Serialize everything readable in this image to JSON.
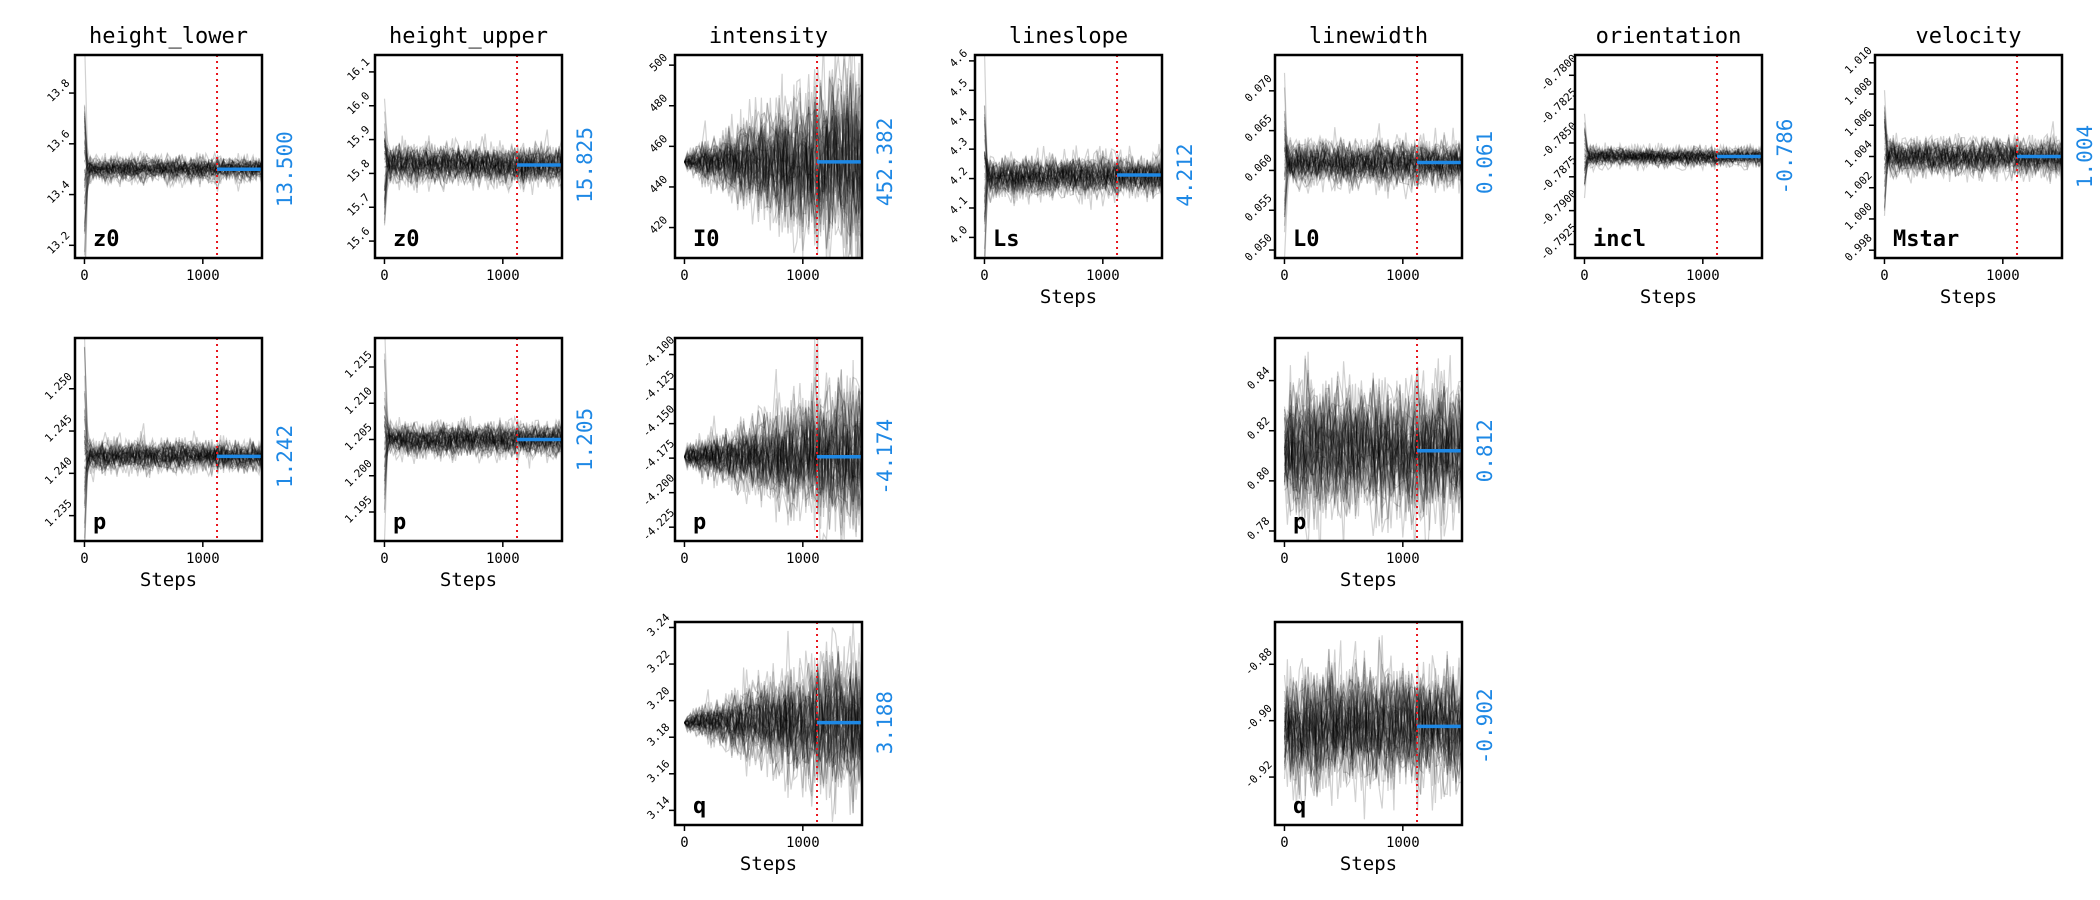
{
  "figure": {
    "x_axis_label": "Steps",
    "colors": {
      "walkers": "#000000",
      "burnin_line": "#e8141c",
      "median": "#1e88e5",
      "frame": "#000000"
    }
  },
  "chart_data": [
    {
      "type": "line",
      "column": "height_lower",
      "title": "height_lower",
      "param": "z0",
      "median": 13.5,
      "median_label": "13.500",
      "burnin_step": 1120,
      "xlim": [
        -80,
        1500
      ],
      "ylim": [
        13.15,
        13.95
      ],
      "yticks": [
        "13.2",
        "13.4",
        "13.6",
        "13.8"
      ],
      "yticks_values": [
        13.2,
        13.4,
        13.6,
        13.8
      ],
      "xticks": [
        "0",
        "1000"
      ],
      "xlabel": "",
      "spread_final": 0.02,
      "spread_start": 0.02,
      "growth": 0,
      "spike": 0.4
    },
    {
      "type": "line",
      "column": "height_upper",
      "title": "height_upper",
      "param": "z0",
      "median": 15.825,
      "median_label": "15.825",
      "burnin_step": 1120,
      "xlim": [
        -80,
        1500
      ],
      "ylim": [
        15.55,
        16.15
      ],
      "yticks": [
        "15.6",
        "15.7",
        "15.8",
        "15.9",
        "16.0",
        "16.1"
      ],
      "yticks_values": [
        15.6,
        15.7,
        15.8,
        15.9,
        16.0,
        16.1
      ],
      "xticks": [
        "0",
        "1000"
      ],
      "xlabel": "",
      "spread_final": 0.025,
      "spread_start": 0.025,
      "growth": 0,
      "spike": 0.27
    },
    {
      "type": "line",
      "column": "intensity",
      "title": "intensity",
      "param": "I0",
      "median": 452.382,
      "median_label": "452.382",
      "burnin_step": 1120,
      "xlim": [
        -80,
        1500
      ],
      "ylim": [
        405,
        505
      ],
      "yticks": [
        "420",
        "440",
        "460",
        "480",
        "500"
      ],
      "yticks_values": [
        420,
        440,
        460,
        480,
        500
      ],
      "xticks": [
        "0",
        "1000"
      ],
      "xlabel": "",
      "spread_final": 20,
      "spread_start": 2,
      "growth": 1,
      "spike": 0
    },
    {
      "type": "line",
      "column": "lineslope",
      "title": "lineslope",
      "param": "Ls",
      "median": 4.212,
      "median_label": "4.212",
      "burnin_step": 1120,
      "xlim": [
        -80,
        1500
      ],
      "ylim": [
        3.93,
        4.62
      ],
      "yticks": [
        "4.0",
        "4.1",
        "4.2",
        "4.3",
        "4.4",
        "4.5",
        "4.6"
      ],
      "yticks_values": [
        4.0,
        4.1,
        4.2,
        4.3,
        4.4,
        4.5,
        4.6
      ],
      "xticks": [
        "0",
        "1000"
      ],
      "xlabel": "Steps",
      "spread_final": 0.03,
      "spread_start": 0.03,
      "growth": 0,
      "spike": 0.3
    },
    {
      "type": "line",
      "column": "linewidth",
      "title": "linewidth",
      "param": "L0",
      "median": 0.061,
      "median_label": "0.061",
      "burnin_step": 1120,
      "xlim": [
        -80,
        1500
      ],
      "ylim": [
        0.049,
        0.0745
      ],
      "yticks": [
        "0.050",
        "0.055",
        "0.060",
        "0.065",
        "0.070"
      ],
      "yticks_values": [
        0.05,
        0.055,
        0.06,
        0.065,
        0.07
      ],
      "xticks": [
        "0",
        "1000"
      ],
      "xlabel": "",
      "spread_final": 0.0012,
      "spread_start": 0.0012,
      "growth": 0,
      "spike": 0.01
    },
    {
      "type": "line",
      "column": "orientation",
      "title": "orientation",
      "param": "incl",
      "median": -0.786,
      "median_label": "-0.786",
      "burnin_step": 1120,
      "xlim": [
        -80,
        1500
      ],
      "ylim": [
        -0.7935,
        -0.7785
      ],
      "yticks": [
        "-0.7925",
        "-0.7900",
        "-0.7875",
        "-0.7850",
        "-0.7825",
        "-0.7800"
      ],
      "yticks_values": [
        -0.7925,
        -0.79,
        -0.7875,
        -0.785,
        -0.7825,
        -0.78
      ],
      "xticks": [
        "0",
        "1000"
      ],
      "xlabel": "Steps",
      "spread_final": 0.0003,
      "spread_start": 0.0003,
      "growth": 0,
      "spike": 0.003
    },
    {
      "type": "line",
      "column": "velocity",
      "title": "velocity",
      "param": "Mstar",
      "median": 1.004,
      "median_label": "1.004",
      "burnin_step": 1120,
      "xlim": [
        -80,
        1500
      ],
      "ylim": [
        0.9975,
        1.0105
      ],
      "yticks": [
        "0.998",
        "1.000",
        "1.002",
        "1.004",
        "1.006",
        "1.008",
        "1.010"
      ],
      "yticks_values": [
        0.998,
        1.0,
        1.002,
        1.004,
        1.006,
        1.008,
        1.01
      ],
      "xticks": [
        "0",
        "1000"
      ],
      "xlabel": "Steps",
      "spread_final": 0.0005,
      "spread_start": 0.0005,
      "growth": 0,
      "spike": 0.004
    },
    {
      "type": "line",
      "column": "height_lower",
      "title": "",
      "param": "p",
      "median": 1.242,
      "median_label": "1.242",
      "burnin_step": 1120,
      "xlim": [
        -80,
        1500
      ],
      "ylim": [
        1.232,
        1.256
      ],
      "yticks": [
        "1.235",
        "1.240",
        "1.245",
        "1.250"
      ],
      "yticks_values": [
        1.235,
        1.24,
        1.245,
        1.25
      ],
      "xticks": [
        "0",
        "1000"
      ],
      "xlabel": "Steps",
      "spread_final": 0.0008,
      "spread_start": 0.0008,
      "growth": 0,
      "spike": 0.011
    },
    {
      "type": "line",
      "column": "height_upper",
      "title": "",
      "param": "p",
      "median": 1.205,
      "median_label": "1.205",
      "burnin_step": 1120,
      "xlim": [
        -80,
        1500
      ],
      "ylim": [
        1.191,
        1.219
      ],
      "yticks": [
        "1.195",
        "1.200",
        "1.205",
        "1.210",
        "1.215"
      ],
      "yticks_values": [
        1.195,
        1.2,
        1.205,
        1.21,
        1.215
      ],
      "xticks": [
        "0",
        "1000"
      ],
      "xlabel": "Steps",
      "spread_final": 0.001,
      "spread_start": 0.001,
      "growth": 0,
      "spike": 0.013
    },
    {
      "type": "line",
      "column": "intensity",
      "title": "",
      "param": "p",
      "median": -4.174,
      "median_label": "-4.174",
      "burnin_step": 1120,
      "xlim": [
        -80,
        1500
      ],
      "ylim": [
        -4.235,
        -4.088
      ],
      "yticks": [
        "-4.225",
        "-4.200",
        "-4.175",
        "-4.150",
        "-4.125",
        "-4.100"
      ],
      "yticks_values": [
        -4.225,
        -4.2,
        -4.175,
        -4.15,
        -4.125,
        -4.1
      ],
      "xticks": [
        "0",
        "1000"
      ],
      "xlabel": "",
      "spread_final": 0.022,
      "spread_start": 0.004,
      "growth": 1,
      "spike": 0
    },
    {
      "type": "line",
      "column": "linewidth",
      "title": "",
      "param": "p",
      "median": 0.812,
      "median_label": "0.812",
      "burnin_step": 1120,
      "xlim": [
        -80,
        1500
      ],
      "ylim": [
        0.776,
        0.857
      ],
      "yticks": [
        "0.78",
        "0.80",
        "0.82",
        "0.84"
      ],
      "yticks_values": [
        0.78,
        0.8,
        0.82,
        0.84
      ],
      "xticks": [
        "0",
        "1000"
      ],
      "xlabel": "Steps",
      "spread_final": 0.011,
      "spread_start": 0.011,
      "growth": 0,
      "spike": 0.02
    },
    {
      "type": "line",
      "column": "intensity",
      "title": "",
      "param": "q",
      "median": 3.188,
      "median_label": "3.188",
      "burnin_step": 1120,
      "xlim": [
        -80,
        1500
      ],
      "ylim": [
        3.132,
        3.243
      ],
      "yticks": [
        "3.14",
        "3.16",
        "3.18",
        "3.20",
        "3.22",
        "3.24"
      ],
      "yticks_values": [
        3.14,
        3.16,
        3.18,
        3.2,
        3.22,
        3.24
      ],
      "xticks": [
        "0",
        "1000"
      ],
      "xlabel": "Steps",
      "spread_final": 0.017,
      "spread_start": 0.002,
      "growth": 1,
      "spike": 0
    },
    {
      "type": "line",
      "column": "linewidth",
      "title": "",
      "param": "q",
      "median": -0.902,
      "median_label": "-0.902",
      "burnin_step": 1120,
      "xlim": [
        -80,
        1500
      ],
      "ylim": [
        -0.937,
        -0.865
      ],
      "yticks": [
        "-0.92",
        "-0.90",
        "-0.88"
      ],
      "yticks_values": [
        -0.92,
        -0.9,
        -0.88
      ],
      "xticks": [
        "0",
        "1000"
      ],
      "xlabel": "Steps",
      "spread_final": 0.009,
      "spread_start": 0.009,
      "growth": 0,
      "spike": 0.02
    }
  ]
}
